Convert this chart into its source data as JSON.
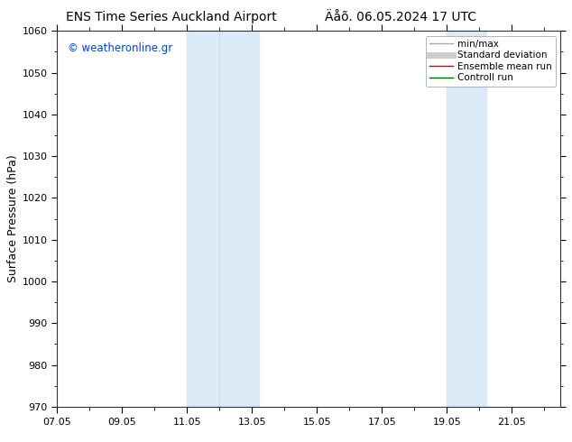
{
  "title_left": "ENS Time Series Auckland Airport",
  "title_right": "Äåõ. 06.05.2024 17 UTC",
  "ylabel": "Surface Pressure (hPa)",
  "ylim": [
    970,
    1060
  ],
  "yticks": [
    970,
    980,
    990,
    1000,
    1010,
    1020,
    1030,
    1040,
    1050,
    1060
  ],
  "xtick_labels": [
    "07.05",
    "09.05",
    "11.05",
    "13.05",
    "15.05",
    "17.05",
    "19.05",
    "21.05"
  ],
  "xtick_positions": [
    0,
    2,
    4,
    6,
    8,
    10,
    12,
    14
  ],
  "xlim": [
    0,
    15.5
  ],
  "shaded_bands": [
    {
      "x_start": 4.0,
      "x_end": 5.0,
      "color": "#daeaf7",
      "alpha": 1.0
    },
    {
      "x_start": 5.0,
      "x_end": 6.2,
      "color": "#daeaf7",
      "alpha": 1.0
    },
    {
      "x_start": 12.0,
      "x_end": 13.2,
      "color": "#daeaf7",
      "alpha": 1.0
    }
  ],
  "band_dividers": [
    5.0
  ],
  "legend_entries": [
    {
      "label": "min/max",
      "color": "#aaaaaa",
      "lw": 1.0,
      "ls": "-",
      "type": "line"
    },
    {
      "label": "Standard deviation",
      "color": "#cccccc",
      "lw": 5,
      "ls": "-",
      "type": "line"
    },
    {
      "label": "Ensemble mean run",
      "color": "#cc0000",
      "lw": 1.0,
      "ls": "-",
      "type": "line"
    },
    {
      "label": "Controll run",
      "color": "#006600",
      "lw": 1.0,
      "ls": "-",
      "type": "line"
    }
  ],
  "watermark": "© weatheronline.gr",
  "watermark_color": "#0044cc",
  "background_color": "#ffffff",
  "plot_bg_color": "#ffffff",
  "title_fontsize": 10,
  "label_fontsize": 9,
  "tick_fontsize": 8,
  "legend_fontsize": 7.5
}
